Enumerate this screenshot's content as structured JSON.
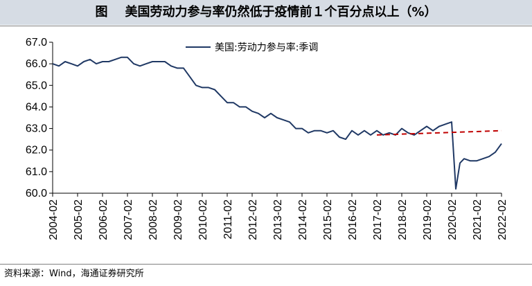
{
  "figure_title": "图    美国劳动力参与率仍然低于疫情前１个百分点以上（%）",
  "source_note": "资料来源：Wind，海通证券研究所",
  "colors": {
    "series": "#1f3864",
    "trend": "#c00000",
    "title_band": "#d6dce4"
  },
  "chart_data": {
    "type": "line",
    "xlabel": "",
    "ylabel": "",
    "x_tick_labels": [
      "2004-02",
      "2005-02",
      "2006-02",
      "2007-02",
      "2008-02",
      "2009-02",
      "2010-02",
      "2011-02",
      "2012-02",
      "2013-02",
      "2014-02",
      "2015-02",
      "2016-02",
      "2017-02",
      "2018-02",
      "2019-02",
      "2020-02",
      "2021-02",
      "2022-02"
    ],
    "y_tick_labels": [
      "67.0",
      "66.0",
      "65.0",
      "64.0",
      "63.0",
      "62.0",
      "61.0",
      "60.0"
    ],
    "ylim": [
      60.0,
      67.0
    ],
    "xlim": [
      "2004-02",
      "2022-02"
    ],
    "grid": false,
    "legend": {
      "position": "top-center"
    },
    "series": [
      {
        "name": "美国:劳动力参与率:季调",
        "style": "solid",
        "points": [
          [
            "2004-02",
            66.0
          ],
          [
            "2004-05",
            65.9
          ],
          [
            "2004-08",
            66.1
          ],
          [
            "2004-11",
            66.0
          ],
          [
            "2005-02",
            65.9
          ],
          [
            "2005-05",
            66.1
          ],
          [
            "2005-08",
            66.2
          ],
          [
            "2005-11",
            66.0
          ],
          [
            "2006-02",
            66.1
          ],
          [
            "2006-05",
            66.1
          ],
          [
            "2006-08",
            66.2
          ],
          [
            "2006-11",
            66.3
          ],
          [
            "2007-02",
            66.3
          ],
          [
            "2007-05",
            66.0
          ],
          [
            "2007-08",
            65.9
          ],
          [
            "2007-11",
            66.0
          ],
          [
            "2008-02",
            66.1
          ],
          [
            "2008-05",
            66.1
          ],
          [
            "2008-08",
            66.1
          ],
          [
            "2008-11",
            65.9
          ],
          [
            "2009-02",
            65.8
          ],
          [
            "2009-05",
            65.8
          ],
          [
            "2009-08",
            65.4
          ],
          [
            "2009-11",
            65.0
          ],
          [
            "2010-02",
            64.9
          ],
          [
            "2010-05",
            64.9
          ],
          [
            "2010-08",
            64.8
          ],
          [
            "2010-11",
            64.5
          ],
          [
            "2011-02",
            64.2
          ],
          [
            "2011-05",
            64.2
          ],
          [
            "2011-08",
            64.0
          ],
          [
            "2011-11",
            64.0
          ],
          [
            "2012-02",
            63.8
          ],
          [
            "2012-05",
            63.7
          ],
          [
            "2012-08",
            63.5
          ],
          [
            "2012-11",
            63.7
          ],
          [
            "2013-02",
            63.5
          ],
          [
            "2013-05",
            63.4
          ],
          [
            "2013-08",
            63.3
          ],
          [
            "2013-11",
            63.0
          ],
          [
            "2014-02",
            63.0
          ],
          [
            "2014-05",
            62.8
          ],
          [
            "2014-08",
            62.9
          ],
          [
            "2014-11",
            62.9
          ],
          [
            "2015-02",
            62.8
          ],
          [
            "2015-05",
            62.9
          ],
          [
            "2015-08",
            62.6
          ],
          [
            "2015-11",
            62.5
          ],
          [
            "2016-02",
            62.9
          ],
          [
            "2016-05",
            62.7
          ],
          [
            "2016-08",
            62.9
          ],
          [
            "2016-11",
            62.7
          ],
          [
            "2017-02",
            62.9
          ],
          [
            "2017-05",
            62.7
          ],
          [
            "2017-08",
            62.8
          ],
          [
            "2017-11",
            62.7
          ],
          [
            "2018-02",
            63.0
          ],
          [
            "2018-05",
            62.8
          ],
          [
            "2018-08",
            62.7
          ],
          [
            "2018-11",
            62.9
          ],
          [
            "2019-02",
            63.1
          ],
          [
            "2019-05",
            62.9
          ],
          [
            "2019-08",
            63.1
          ],
          [
            "2019-11",
            63.2
          ],
          [
            "2020-02",
            63.3
          ],
          [
            "2020-04",
            60.2
          ],
          [
            "2020-06",
            61.4
          ],
          [
            "2020-08",
            61.6
          ],
          [
            "2020-11",
            61.5
          ],
          [
            "2021-02",
            61.5
          ],
          [
            "2021-05",
            61.6
          ],
          [
            "2021-08",
            61.7
          ],
          [
            "2021-11",
            61.9
          ],
          [
            "2022-02",
            62.3
          ]
        ]
      },
      {
        "name": "",
        "style": "dashed",
        "points": [
          [
            "2017-02",
            62.7
          ],
          [
            "2022-02",
            62.9
          ]
        ]
      }
    ]
  }
}
